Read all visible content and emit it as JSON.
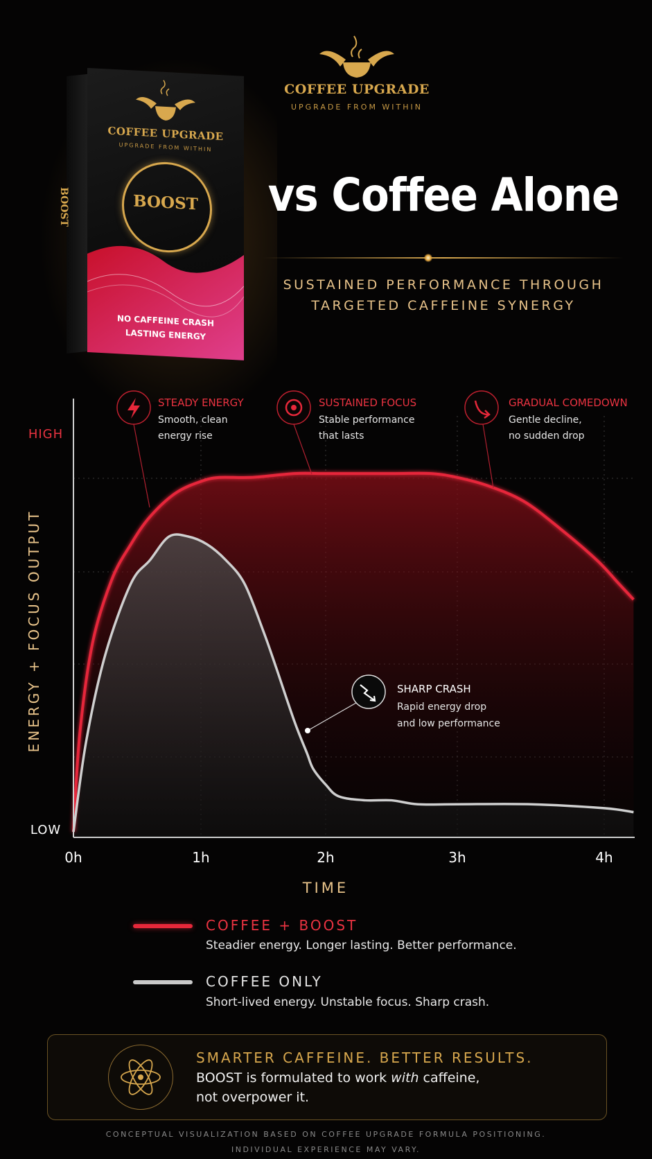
{
  "brand": {
    "name": "COFFEE UPGRADE",
    "tagline": "UPGRADE FROM WITHIN"
  },
  "product_box": {
    "brand": "COFFEE UPGRADE",
    "tagline": "UPGRADE FROM WITHIN",
    "name": "BOOST",
    "side_label": "BOOST",
    "claim_line1": "NO CAFFEINE CRASH",
    "claim_line2": "LASTING ENERGY"
  },
  "headline": "vs Coffee Alone",
  "subheadline": {
    "line1": "SUSTAINED PERFORMANCE THROUGH",
    "line2": "TARGETED CAFFEINE SYNERGY"
  },
  "colors": {
    "boost": "#e6283a",
    "coffee": "#c9c9c9",
    "gold": "#d8a84e",
    "background": "#050404"
  },
  "chart_data": {
    "type": "line",
    "xlabel": "TIME",
    "ylabel": "ENERGY + FOCUS OUTPUT",
    "x_ticks": [
      "0h",
      "1h",
      "2h",
      "3h",
      "4h"
    ],
    "y_ticks": [
      "LOW",
      "HIGH"
    ],
    "xlim": [
      0,
      4.2
    ],
    "ylim": [
      0,
      100
    ],
    "grid": true,
    "series": [
      {
        "name": "COFFEE + BOOST",
        "color": "#e6283a",
        "points": [
          [
            0,
            0
          ],
          [
            0.05,
            25
          ],
          [
            0.15,
            48
          ],
          [
            0.3,
            64
          ],
          [
            0.45,
            73
          ],
          [
            0.6,
            80
          ],
          [
            0.8,
            86
          ],
          [
            1.0,
            89
          ],
          [
            1.15,
            90
          ],
          [
            1.4,
            90
          ],
          [
            1.75,
            91
          ],
          [
            2.0,
            91
          ],
          [
            2.5,
            91
          ],
          [
            2.8,
            91
          ],
          [
            3.0,
            90
          ],
          [
            3.2,
            88
          ],
          [
            3.45,
            84
          ],
          [
            3.7,
            77
          ],
          [
            3.95,
            69
          ],
          [
            4.1,
            63
          ],
          [
            4.2,
            59
          ]
        ]
      },
      {
        "name": "COFFEE ONLY",
        "color": "#c9c9c9",
        "points": [
          [
            0,
            0
          ],
          [
            0.1,
            23
          ],
          [
            0.25,
            45
          ],
          [
            0.45,
            63
          ],
          [
            0.6,
            69
          ],
          [
            0.75,
            75
          ],
          [
            0.9,
            75
          ],
          [
            1.05,
            73
          ],
          [
            1.2,
            69
          ],
          [
            1.35,
            63
          ],
          [
            1.5,
            51
          ],
          [
            1.6,
            42
          ],
          [
            1.75,
            28
          ],
          [
            1.85,
            20
          ],
          [
            1.9,
            16
          ],
          [
            2.0,
            12
          ],
          [
            2.1,
            9
          ],
          [
            2.3,
            8
          ],
          [
            2.5,
            8
          ],
          [
            2.7,
            7
          ],
          [
            3.0,
            7
          ],
          [
            3.5,
            7
          ],
          [
            4.0,
            6
          ],
          [
            4.2,
            5
          ]
        ]
      }
    ],
    "annotations": [
      {
        "icon": "lightning-icon",
        "title": "STEADY ENERGY",
        "line1": "Smooth, clean",
        "line2": "energy rise"
      },
      {
        "icon": "target-icon",
        "title": "SUSTAINED FOCUS",
        "line1": "Stable performance",
        "line2": "that lasts"
      },
      {
        "icon": "curve-down-arrow-icon",
        "title": "GRADUAL COMEDOWN",
        "line1": "Gentle decline,",
        "line2": "no sudden drop"
      },
      {
        "icon": "zigzag-crash-icon",
        "title": "SHARP CRASH",
        "line1": "Rapid energy drop",
        "line2": "and low performance"
      }
    ]
  },
  "legend": [
    {
      "title": "COFFEE + BOOST",
      "desc": "Steadier energy. Longer lasting. Better performance."
    },
    {
      "title": "COFFEE ONLY",
      "desc": "Short-lived energy. Unstable focus. Sharp crash."
    }
  ],
  "callout": {
    "icon": "atom-icon",
    "title": "SMARTER CAFFEINE. BETTER RESULTS.",
    "body_pre": "BOOST is formulated to work ",
    "body_em": "with",
    "body_post": " caffeine,",
    "body_line2": "not overpower it."
  },
  "footer": {
    "line1": "CONCEPTUAL VISUALIZATION BASED ON COFFEE UPGRADE FORMULA POSITIONING.",
    "line2": "INDIVIDUAL EXPERIENCE MAY VARY."
  }
}
